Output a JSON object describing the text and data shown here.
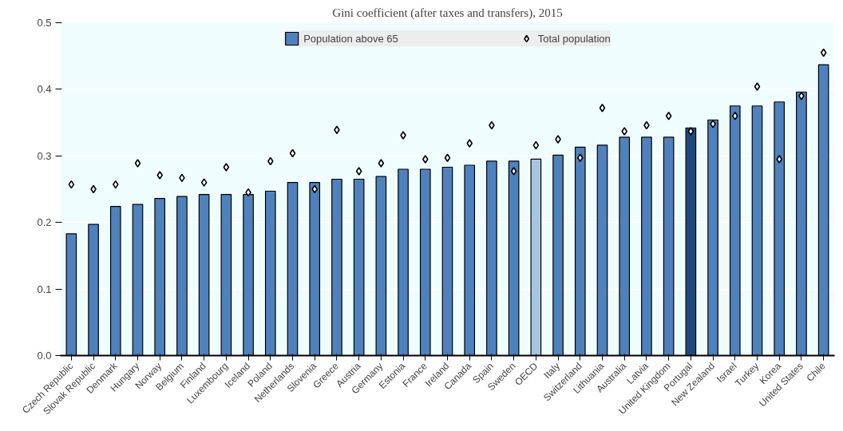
{
  "chart_data": {
    "type": "bar",
    "title": "Gini coefficient (after taxes and transfers), 2015",
    "categories": [
      "Czech Republic",
      "Slovak Republic",
      "Denmark",
      "Hungary",
      "Norway",
      "Belgium",
      "Finland",
      "Luxembourg",
      "Iceland",
      "Poland",
      "Netherlands",
      "Slovenia",
      "Greece",
      "Austria",
      "Germany",
      "Estonia",
      "France",
      "Ireland",
      "Canada",
      "Spain",
      "Sweden",
      "OECD",
      "Italy",
      "Switzerland",
      "Lithuania",
      "Australia",
      "Latvia",
      "United Kingdom",
      "Portugal",
      "New Zealand",
      "Israel",
      "Turkey",
      "Korea",
      "United States",
      "Chile"
    ],
    "series": [
      {
        "name": "Population above 65",
        "colors": [
          "#4f81bd",
          "#4f81bd",
          "#4f81bd",
          "#4f81bd",
          "#4f81bd",
          "#4f81bd",
          "#4f81bd",
          "#4f81bd",
          "#4f81bd",
          "#4f81bd",
          "#4f81bd",
          "#4f81bd",
          "#4f81bd",
          "#4f81bd",
          "#4f81bd",
          "#4f81bd",
          "#4f81bd",
          "#4f81bd",
          "#4f81bd",
          "#4f81bd",
          "#4f81bd",
          "#a9c3e3",
          "#4f81bd",
          "#4f81bd",
          "#4f81bd",
          "#4f81bd",
          "#4f81bd",
          "#4f81bd",
          "#1f497d",
          "#4f81bd",
          "#4f81bd",
          "#4f81bd",
          "#4f81bd",
          "#4f81bd",
          "#4f81bd"
        ],
        "values": [
          0.183,
          0.197,
          0.224,
          0.227,
          0.236,
          0.239,
          0.242,
          0.242,
          0.242,
          0.247,
          0.26,
          0.26,
          0.265,
          0.265,
          0.269,
          0.28,
          0.28,
          0.283,
          0.286,
          0.292,
          0.292,
          0.295,
          0.301,
          0.313,
          0.316,
          0.328,
          0.328,
          0.328,
          0.342,
          0.354,
          0.375,
          0.375,
          0.381,
          0.396,
          0.437
        ]
      },
      {
        "name": "Total population",
        "type": "scatter",
        "marker": "diamond",
        "color": "#ffffff",
        "values": [
          0.257,
          0.25,
          0.257,
          0.289,
          0.271,
          0.267,
          0.26,
          0.283,
          0.245,
          0.292,
          0.304,
          0.25,
          0.339,
          0.277,
          0.289,
          0.331,
          0.295,
          0.297,
          0.319,
          0.346,
          0.277,
          0.316,
          0.325,
          0.297,
          0.372,
          0.337,
          0.346,
          0.36,
          0.337,
          0.348,
          0.36,
          0.404,
          0.295,
          0.39,
          0.455
        ]
      }
    ],
    "ylim": [
      0,
      0.5
    ],
    "yticks": [
      {
        "value": 0,
        "label": "0.0"
      },
      0.1,
      0.2,
      0.3,
      0.4,
      0.5
    ],
    "grid": "y",
    "legend": "top"
  }
}
